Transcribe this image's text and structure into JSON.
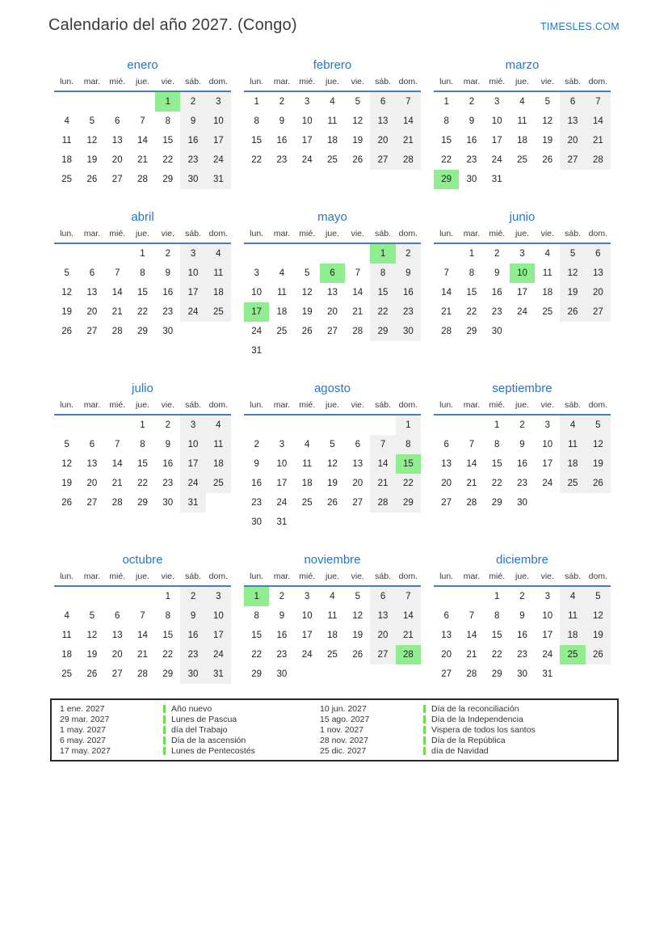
{
  "page": {
    "title": "Calendario del año 2027. (Congo)",
    "site": "TIMESLES.COM"
  },
  "colors": {
    "accent_blue": "#2577c3",
    "header_line": "#4a7db8",
    "holiday_green": "#90ee90",
    "weekend_gray": "#f0f0f0",
    "legend_green": "#6cdf4f"
  },
  "weekdays": [
    "lun.",
    "mar.",
    "mié.",
    "jue.",
    "vie.",
    "sáb.",
    "dom."
  ],
  "months": [
    {
      "name": "enero",
      "holidays": [
        1
      ],
      "weeks": [
        [
          null,
          null,
          null,
          null,
          1,
          2,
          3
        ],
        [
          4,
          5,
          6,
          7,
          8,
          9,
          10
        ],
        [
          11,
          12,
          13,
          14,
          15,
          16,
          17
        ],
        [
          18,
          19,
          20,
          21,
          22,
          23,
          24
        ],
        [
          25,
          26,
          27,
          28,
          29,
          30,
          31
        ]
      ]
    },
    {
      "name": "febrero",
      "holidays": [],
      "weeks": [
        [
          1,
          2,
          3,
          4,
          5,
          6,
          7
        ],
        [
          8,
          9,
          10,
          11,
          12,
          13,
          14
        ],
        [
          15,
          16,
          17,
          18,
          19,
          20,
          21
        ],
        [
          22,
          23,
          24,
          25,
          26,
          27,
          28
        ]
      ]
    },
    {
      "name": "marzo",
      "holidays": [
        29
      ],
      "weeks": [
        [
          1,
          2,
          3,
          4,
          5,
          6,
          7
        ],
        [
          8,
          9,
          10,
          11,
          12,
          13,
          14
        ],
        [
          15,
          16,
          17,
          18,
          19,
          20,
          21
        ],
        [
          22,
          23,
          24,
          25,
          26,
          27,
          28
        ],
        [
          29,
          30,
          31,
          null,
          null,
          null,
          null
        ]
      ]
    },
    {
      "name": "abril",
      "holidays": [],
      "weeks": [
        [
          null,
          null,
          null,
          1,
          2,
          3,
          4
        ],
        [
          5,
          6,
          7,
          8,
          9,
          10,
          11
        ],
        [
          12,
          13,
          14,
          15,
          16,
          17,
          18
        ],
        [
          19,
          20,
          21,
          22,
          23,
          24,
          25
        ],
        [
          26,
          27,
          28,
          29,
          30,
          null,
          null
        ]
      ]
    },
    {
      "name": "mayo",
      "holidays": [
        1,
        6,
        17
      ],
      "weeks": [
        [
          null,
          null,
          null,
          null,
          null,
          1,
          2
        ],
        [
          3,
          4,
          5,
          6,
          7,
          8,
          9
        ],
        [
          10,
          11,
          12,
          13,
          14,
          15,
          16
        ],
        [
          17,
          18,
          19,
          20,
          21,
          22,
          23
        ],
        [
          24,
          25,
          26,
          27,
          28,
          29,
          30
        ],
        [
          31,
          null,
          null,
          null,
          null,
          null,
          null
        ]
      ]
    },
    {
      "name": "junio",
      "holidays": [
        10
      ],
      "weeks": [
        [
          null,
          1,
          2,
          3,
          4,
          5,
          6
        ],
        [
          7,
          8,
          9,
          10,
          11,
          12,
          13
        ],
        [
          14,
          15,
          16,
          17,
          18,
          19,
          20
        ],
        [
          21,
          22,
          23,
          24,
          25,
          26,
          27
        ],
        [
          28,
          29,
          30,
          null,
          null,
          null,
          null
        ]
      ]
    },
    {
      "name": "julio",
      "holidays": [],
      "weeks": [
        [
          null,
          null,
          null,
          1,
          2,
          3,
          4
        ],
        [
          5,
          6,
          7,
          8,
          9,
          10,
          11
        ],
        [
          12,
          13,
          14,
          15,
          16,
          17,
          18
        ],
        [
          19,
          20,
          21,
          22,
          23,
          24,
          25
        ],
        [
          26,
          27,
          28,
          29,
          30,
          31,
          null
        ]
      ]
    },
    {
      "name": "agosto",
      "holidays": [
        15
      ],
      "weeks": [
        [
          null,
          null,
          null,
          null,
          null,
          null,
          1
        ],
        [
          2,
          3,
          4,
          5,
          6,
          7,
          8
        ],
        [
          9,
          10,
          11,
          12,
          13,
          14,
          15
        ],
        [
          16,
          17,
          18,
          19,
          20,
          21,
          22
        ],
        [
          23,
          24,
          25,
          26,
          27,
          28,
          29
        ],
        [
          30,
          31,
          null,
          null,
          null,
          null,
          null
        ]
      ]
    },
    {
      "name": "septiembre",
      "holidays": [],
      "weeks": [
        [
          null,
          null,
          1,
          2,
          3,
          4,
          5
        ],
        [
          6,
          7,
          8,
          9,
          10,
          11,
          12
        ],
        [
          13,
          14,
          15,
          16,
          17,
          18,
          19
        ],
        [
          20,
          21,
          22,
          23,
          24,
          25,
          26
        ],
        [
          27,
          28,
          29,
          30,
          null,
          null,
          null
        ]
      ]
    },
    {
      "name": "octubre",
      "holidays": [],
      "weeks": [
        [
          null,
          null,
          null,
          null,
          1,
          2,
          3
        ],
        [
          4,
          5,
          6,
          7,
          8,
          9,
          10
        ],
        [
          11,
          12,
          13,
          14,
          15,
          16,
          17
        ],
        [
          18,
          19,
          20,
          21,
          22,
          23,
          24
        ],
        [
          25,
          26,
          27,
          28,
          29,
          30,
          31
        ]
      ]
    },
    {
      "name": "noviembre",
      "holidays": [
        1,
        28
      ],
      "weeks": [
        [
          1,
          2,
          3,
          4,
          5,
          6,
          7
        ],
        [
          8,
          9,
          10,
          11,
          12,
          13,
          14
        ],
        [
          15,
          16,
          17,
          18,
          19,
          20,
          21
        ],
        [
          22,
          23,
          24,
          25,
          26,
          27,
          28
        ],
        [
          29,
          30,
          null,
          null,
          null,
          null,
          null
        ]
      ]
    },
    {
      "name": "diciembre",
      "holidays": [
        25
      ],
      "weeks": [
        [
          null,
          null,
          1,
          2,
          3,
          4,
          5
        ],
        [
          6,
          7,
          8,
          9,
          10,
          11,
          12
        ],
        [
          13,
          14,
          15,
          16,
          17,
          18,
          19
        ],
        [
          20,
          21,
          22,
          23,
          24,
          25,
          26
        ],
        [
          27,
          28,
          29,
          30,
          31,
          null,
          null
        ]
      ]
    }
  ],
  "legend": [
    {
      "date": "1 ene. 2027",
      "name": "Año nuevo"
    },
    {
      "date": "29 mar. 2027",
      "name": "Lunes de Pascua"
    },
    {
      "date": "1 may. 2027",
      "name": "día del Trabajo"
    },
    {
      "date": "6 may. 2027",
      "name": "Día de la ascensión"
    },
    {
      "date": "17 may. 2027",
      "name": "Lunes de Pentecostés"
    },
    {
      "date": "10 jun. 2027",
      "name": "Día de la reconciliación"
    },
    {
      "date": "15 ago. 2027",
      "name": "Día de la Independencia"
    },
    {
      "date": "1 nov. 2027",
      "name": "Vispera de todos los santos"
    },
    {
      "date": "28 nov. 2027",
      "name": "Día de la República"
    },
    {
      "date": "25 dic. 2027",
      "name": "día de Navidad"
    }
  ]
}
